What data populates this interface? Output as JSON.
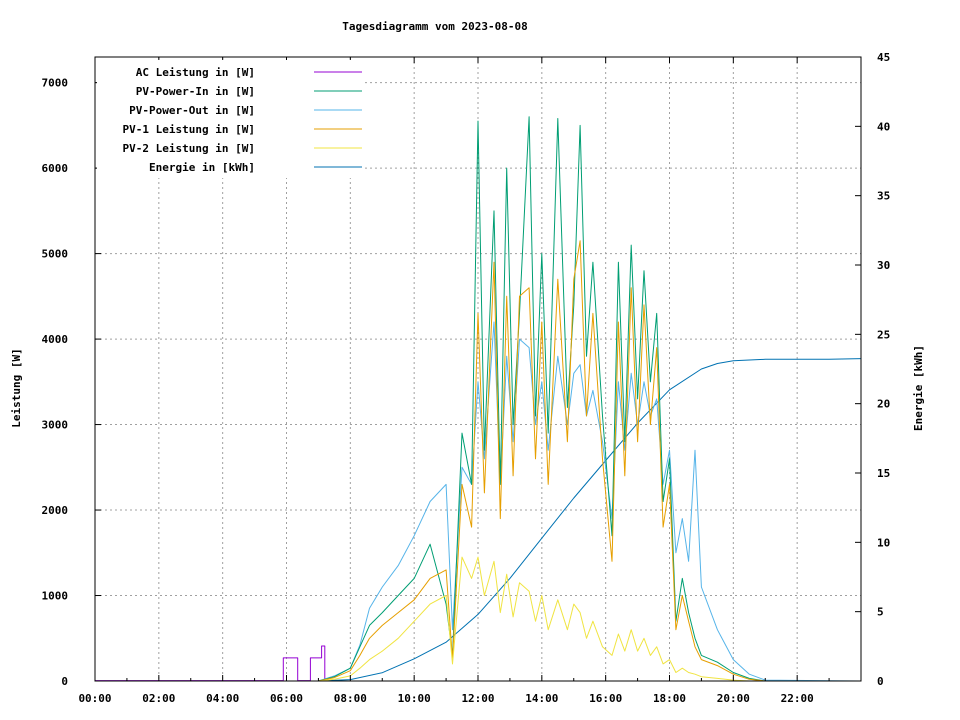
{
  "chart_data": {
    "type": "line",
    "title": "Tagesdiagramm vom 2023-08-08",
    "ylabel": "Leistung [W]",
    "y2label": "Energie [kWh]",
    "x_unit": "hours",
    "xlim": [
      0,
      24
    ],
    "ylim": [
      0,
      7300
    ],
    "y2lim": [
      0,
      45
    ],
    "x_tick_labels": [
      "00:00",
      "02:00",
      "04:00",
      "06:00",
      "08:00",
      "10:00",
      "12:00",
      "14:00",
      "16:00",
      "18:00",
      "20:00",
      "22:00"
    ],
    "x_tick_values": [
      0,
      2,
      4,
      6,
      8,
      10,
      12,
      14,
      16,
      18,
      20,
      22
    ],
    "y_tick_labels": [
      "0",
      "1000",
      "2000",
      "3000",
      "4000",
      "5000",
      "6000",
      "7000"
    ],
    "y_tick_values": [
      0,
      1000,
      2000,
      3000,
      4000,
      5000,
      6000,
      7000
    ],
    "y2_tick_labels": [
      "0",
      "5",
      "10",
      "15",
      "20",
      "25",
      "30",
      "35",
      "40",
      "45"
    ],
    "y2_tick_values": [
      0,
      5,
      10,
      15,
      20,
      25,
      30,
      35,
      40,
      45
    ],
    "grid": true,
    "legend_position": "top-left",
    "series": [
      {
        "name": "AC Leistung in [W]",
        "color": "#9400d3",
        "axis": "left",
        "x": [
          0,
          5.9,
          5.9,
          6.35,
          6.35,
          6.75,
          6.75,
          7.1,
          7.1,
          7.2,
          7.2,
          24
        ],
        "y": [
          5,
          5,
          270,
          270,
          5,
          5,
          270,
          270,
          410,
          410,
          0,
          0
        ]
      },
      {
        "name": "PV-Power-In in [W]",
        "color": "#009e73",
        "axis": "left",
        "x": [
          0,
          7.0,
          7.5,
          8.0,
          8.3,
          8.6,
          9.0,
          9.5,
          10.0,
          10.5,
          11.0,
          11.2,
          11.5,
          11.8,
          12.0,
          12.2,
          12.5,
          12.7,
          12.9,
          13.1,
          13.3,
          13.6,
          13.8,
          14.0,
          14.2,
          14.5,
          14.8,
          15.0,
          15.2,
          15.4,
          15.6,
          15.9,
          16.2,
          16.4,
          16.6,
          16.8,
          17.0,
          17.2,
          17.4,
          17.6,
          17.8,
          18.0,
          18.2,
          18.4,
          18.6,
          18.8,
          19.0,
          19.5,
          20.0,
          20.5,
          21.0,
          24
        ],
        "y": [
          0,
          0,
          50,
          150,
          400,
          650,
          800,
          1000,
          1200,
          1600,
          900,
          300,
          2900,
          2300,
          6550,
          2700,
          5500,
          2300,
          6000,
          3000,
          4300,
          6600,
          3100,
          5000,
          2900,
          6580,
          3200,
          4400,
          6500,
          3800,
          4900,
          3100,
          1700,
          4900,
          2800,
          5100,
          3300,
          4800,
          3500,
          4300,
          2100,
          2600,
          700,
          1200,
          800,
          500,
          300,
          220,
          100,
          30,
          0,
          0
        ]
      },
      {
        "name": "PV-Power-Out in [W]",
        "color": "#56b4e9",
        "axis": "left",
        "x": [
          0,
          7.0,
          7.5,
          8.0,
          8.3,
          8.6,
          9.0,
          9.5,
          10.0,
          10.5,
          11.0,
          11.2,
          11.5,
          11.8,
          12.0,
          12.2,
          12.5,
          12.7,
          12.9,
          13.1,
          13.3,
          13.6,
          13.8,
          14.0,
          14.2,
          14.5,
          14.8,
          15.0,
          15.2,
          15.4,
          15.6,
          15.9,
          16.2,
          16.4,
          16.6,
          16.8,
          17.0,
          17.2,
          17.4,
          17.6,
          17.8,
          18.0,
          18.2,
          18.4,
          18.6,
          18.8,
          19.0,
          19.5,
          20.0,
          20.5,
          21.0,
          24
        ],
        "y": [
          0,
          0,
          60,
          150,
          420,
          850,
          1100,
          1350,
          1700,
          2100,
          2300,
          600,
          2500,
          2300,
          3500,
          2600,
          4200,
          2300,
          3800,
          2800,
          4000,
          3900,
          3000,
          3500,
          2700,
          3800,
          3000,
          3600,
          3700,
          3100,
          3400,
          2800,
          1900,
          3500,
          2700,
          3600,
          3000,
          3500,
          3100,
          3300,
          2300,
          2700,
          1500,
          1900,
          1400,
          2700,
          1100,
          600,
          250,
          80,
          10,
          0
        ]
      },
      {
        "name": "PV-1 Leistung in [W]",
        "color": "#e69f00",
        "axis": "left",
        "x": [
          0,
          7.0,
          7.5,
          8.0,
          8.3,
          8.6,
          9.0,
          9.5,
          10.0,
          10.5,
          11.0,
          11.2,
          11.5,
          11.8,
          12.0,
          12.2,
          12.5,
          12.7,
          12.9,
          13.1,
          13.3,
          13.6,
          13.8,
          14.0,
          14.2,
          14.5,
          14.8,
          15.0,
          15.2,
          15.4,
          15.6,
          15.9,
          16.2,
          16.4,
          16.6,
          16.8,
          17.0,
          17.2,
          17.4,
          17.6,
          17.8,
          18.0,
          18.2,
          18.4,
          18.6,
          18.8,
          19.0,
          19.5,
          20.0,
          20.5,
          21.0,
          24
        ],
        "y": [
          0,
          0,
          40,
          120,
          300,
          500,
          650,
          800,
          950,
          1200,
          1300,
          250,
          2300,
          1800,
          4300,
          2200,
          4900,
          1900,
          4500,
          2400,
          4500,
          4600,
          2600,
          4200,
          2300,
          4700,
          2800,
          4700,
          5150,
          3100,
          4300,
          2600,
          1400,
          4200,
          2400,
          4600,
          2800,
          4400,
          3000,
          3900,
          1800,
          2300,
          600,
          1000,
          700,
          400,
          250,
          180,
          80,
          20,
          0,
          0
        ]
      },
      {
        "name": "PV-2 Leistung in [W]",
        "color": "#f0e442",
        "axis": "left",
        "x": [
          0,
          7.0,
          7.5,
          8.0,
          8.3,
          8.6,
          9.0,
          9.5,
          10.0,
          10.5,
          11.0,
          11.2,
          11.5,
          11.8,
          12.0,
          12.2,
          12.5,
          12.7,
          12.9,
          13.1,
          13.3,
          13.6,
          13.8,
          14.0,
          14.2,
          14.5,
          14.8,
          15.0,
          15.2,
          15.4,
          15.6,
          15.9,
          16.2,
          16.4,
          16.6,
          16.8,
          17.0,
          17.2,
          17.4,
          17.6,
          17.8,
          18.0,
          18.2,
          18.4,
          18.6,
          18.8,
          19.0,
          19.5,
          20.0,
          20.5,
          21.0,
          24
        ],
        "y": [
          0,
          0,
          20,
          60,
          150,
          250,
          350,
          500,
          700,
          900,
          1000,
          200,
          1450,
          1200,
          1450,
          1000,
          1400,
          800,
          1250,
          750,
          1150,
          1050,
          700,
          1000,
          600,
          950,
          600,
          900,
          800,
          500,
          700,
          400,
          300,
          550,
          350,
          600,
          350,
          500,
          300,
          400,
          200,
          250,
          100,
          150,
          100,
          80,
          50,
          30,
          10,
          0,
          0,
          0
        ]
      },
      {
        "name": "Energie in [kWh]",
        "color": "#0072b2",
        "axis": "right",
        "x": [
          0,
          7.0,
          8.0,
          9.0,
          10.0,
          11.0,
          12.0,
          13.0,
          14.0,
          15.0,
          16.0,
          17.0,
          18.0,
          19.0,
          19.5,
          20.0,
          21.0,
          22.0,
          23.0,
          24
        ],
        "y": [
          0,
          0,
          0.1,
          0.6,
          1.6,
          2.8,
          4.8,
          7.4,
          10.3,
          13.2,
          15.9,
          18.6,
          21.0,
          22.5,
          22.9,
          23.1,
          23.2,
          23.2,
          23.2,
          23.25
        ]
      }
    ]
  }
}
